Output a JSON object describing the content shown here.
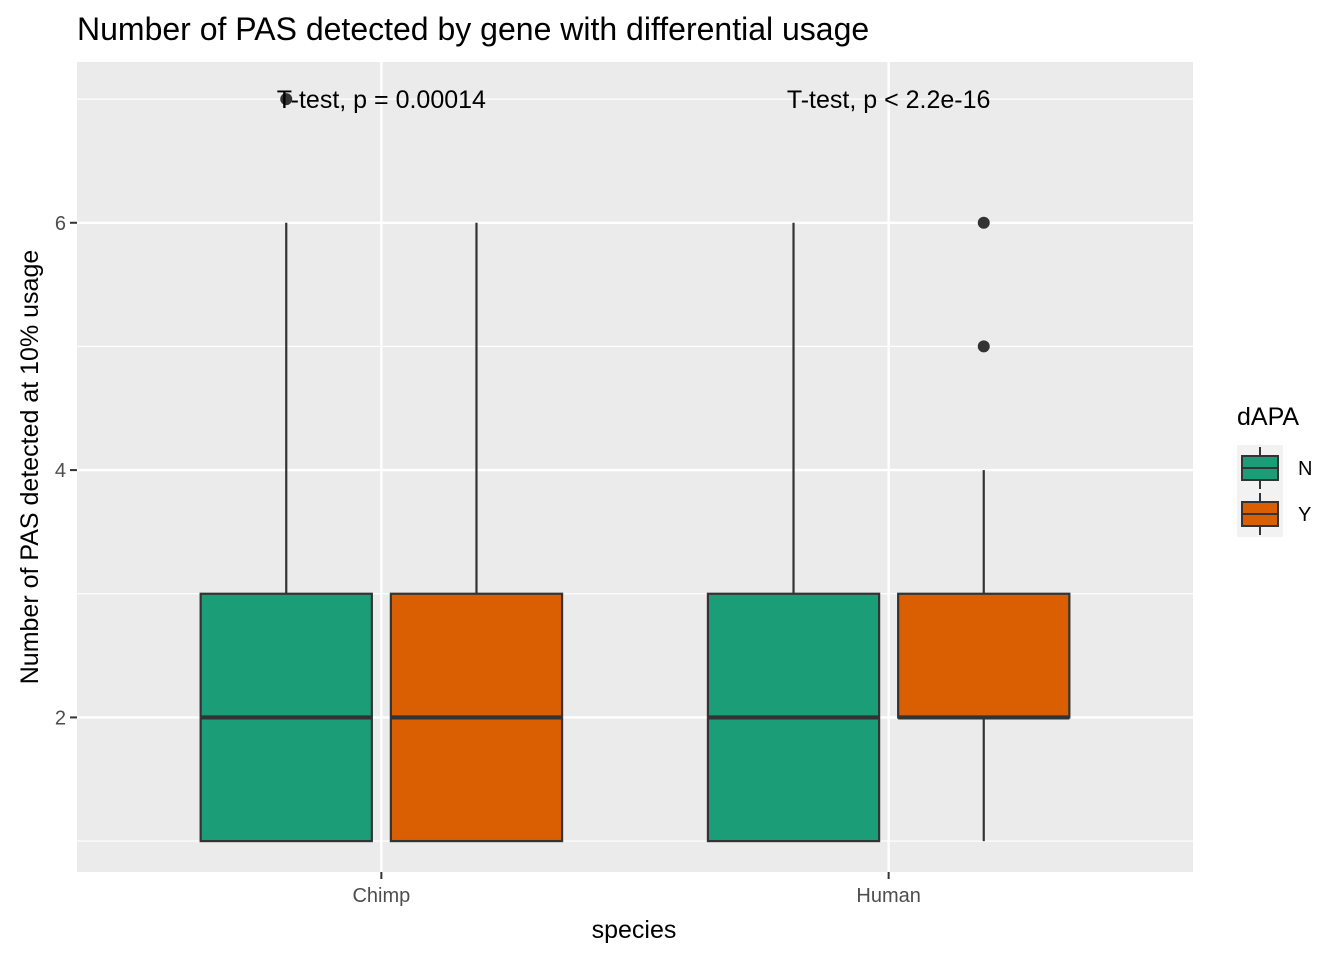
{
  "chart_data": {
    "type": "boxplot",
    "title": "Number of PAS detected by gene with differential usage",
    "xlabel": "species",
    "ylabel": "Number of PAS detected at 10% usage",
    "categories": [
      "Chimp",
      "Human"
    ],
    "ylim": [
      0.75,
      7.3
    ],
    "yticks": [
      2,
      4,
      6
    ],
    "grid": true,
    "legend": {
      "title": "dAPA",
      "position": "right",
      "entries": [
        {
          "label": "N",
          "color": "#1b9e77"
        },
        {
          "label": "Y",
          "color": "#d95f02"
        }
      ]
    },
    "series": [
      {
        "name": "N",
        "color": "#1b9e77",
        "boxes": [
          {
            "category": "Chimp",
            "min": 1,
            "q1": 1,
            "median": 2,
            "q3": 3,
            "max": 6,
            "outliers": [
              7
            ]
          },
          {
            "category": "Human",
            "min": 1,
            "q1": 1,
            "median": 2,
            "q3": 3,
            "max": 6,
            "outliers": []
          }
        ]
      },
      {
        "name": "Y",
        "color": "#d95f02",
        "boxes": [
          {
            "category": "Chimp",
            "min": 1,
            "q1": 1,
            "median": 2,
            "q3": 3,
            "max": 6,
            "outliers": []
          },
          {
            "category": "Human",
            "min": 1,
            "q1": 2,
            "median": 2,
            "q3": 3,
            "max": 4,
            "outliers": [
              5,
              6
            ]
          }
        ]
      }
    ],
    "annotations": [
      {
        "category": "Chimp",
        "y": 7,
        "text": "T-test, p = 0.00014"
      },
      {
        "category": "Human",
        "y": 7,
        "text": "T-test, p < 2.2e-16"
      }
    ]
  }
}
